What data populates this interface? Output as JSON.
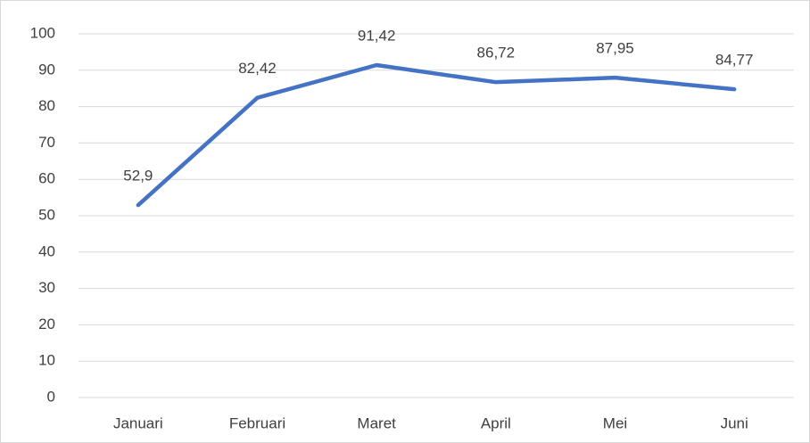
{
  "chart_data": {
    "type": "line",
    "categories": [
      "Januari",
      "Februari",
      "Maret",
      "April",
      "Mei",
      "Juni"
    ],
    "values": [
      52.9,
      82.42,
      91.42,
      86.72,
      87.95,
      84.77
    ],
    "value_labels": [
      "52,9",
      "82,42",
      "91,42",
      "86,72",
      "87,95",
      "84,77"
    ],
    "color": "#4472c4",
    "ylim": [
      0,
      100
    ],
    "yticks": [
      0,
      10,
      20,
      30,
      40,
      50,
      60,
      70,
      80,
      90,
      100
    ],
    "grid": true
  }
}
